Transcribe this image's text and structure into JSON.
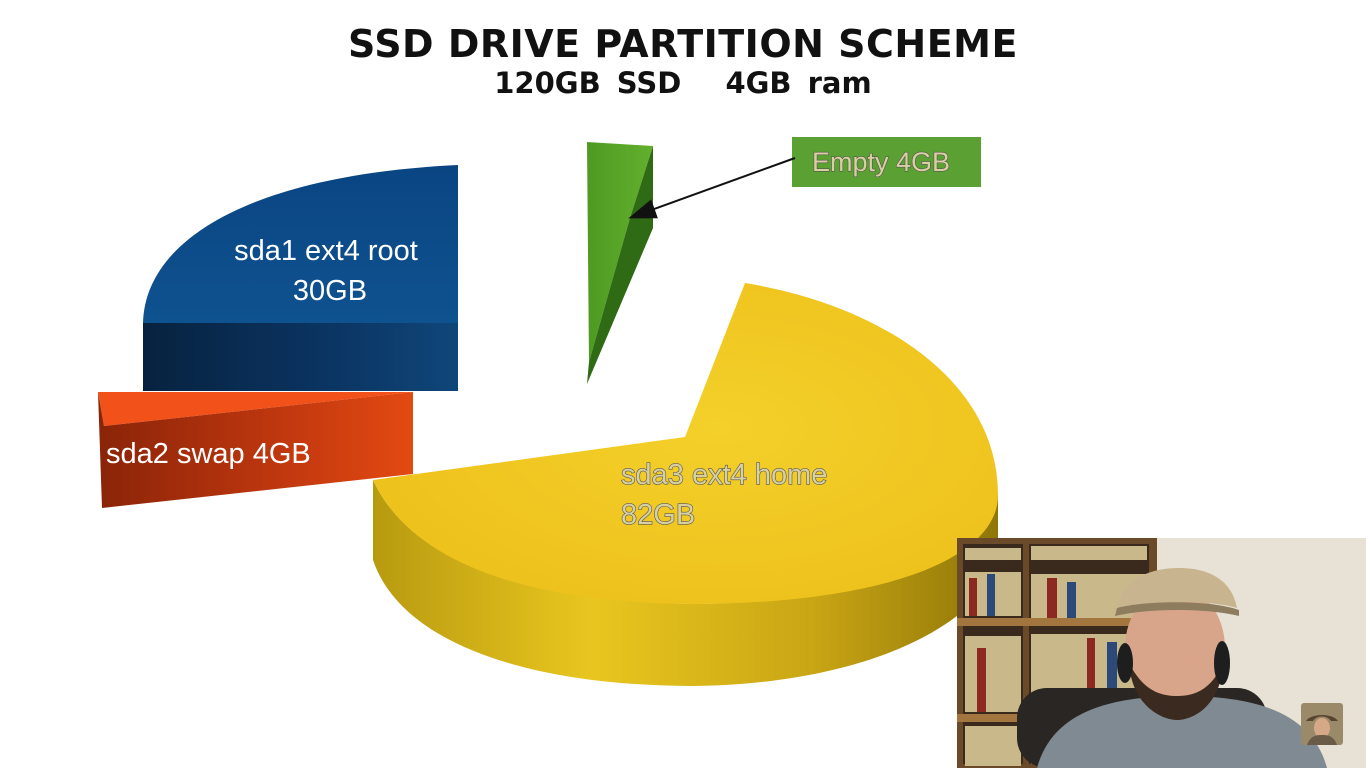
{
  "title": "SSD DRIVE PARTITION SCHEME",
  "subtitle": [
    "120GB SSD",
    "4GB ram"
  ],
  "chart_data": {
    "type": "pie",
    "style": "3d-exploded",
    "slices": [
      {
        "id": "home",
        "label_lines": [
          "sda3  ext4  home",
          "82GB"
        ],
        "value": 82,
        "unit": "GB",
        "color": "#f2c81e"
      },
      {
        "id": "empty",
        "label_lines": [
          "Empty  4GB"
        ],
        "value": 4,
        "unit": "GB",
        "color": "#5aa02c",
        "callout": true
      },
      {
        "id": "root",
        "label_lines": [
          "sda1  ext4  root",
          "30GB"
        ],
        "value": 30,
        "unit": "GB",
        "color": "#0e4a86"
      },
      {
        "id": "swap",
        "label_lines": [
          "sda2  swap  4GB"
        ],
        "value": 4,
        "unit": "GB",
        "color": "#e43d12"
      }
    ]
  },
  "video_overlay": {
    "webcam": "presenter-webcam",
    "channel_logo": "channel-avatar-icon"
  }
}
